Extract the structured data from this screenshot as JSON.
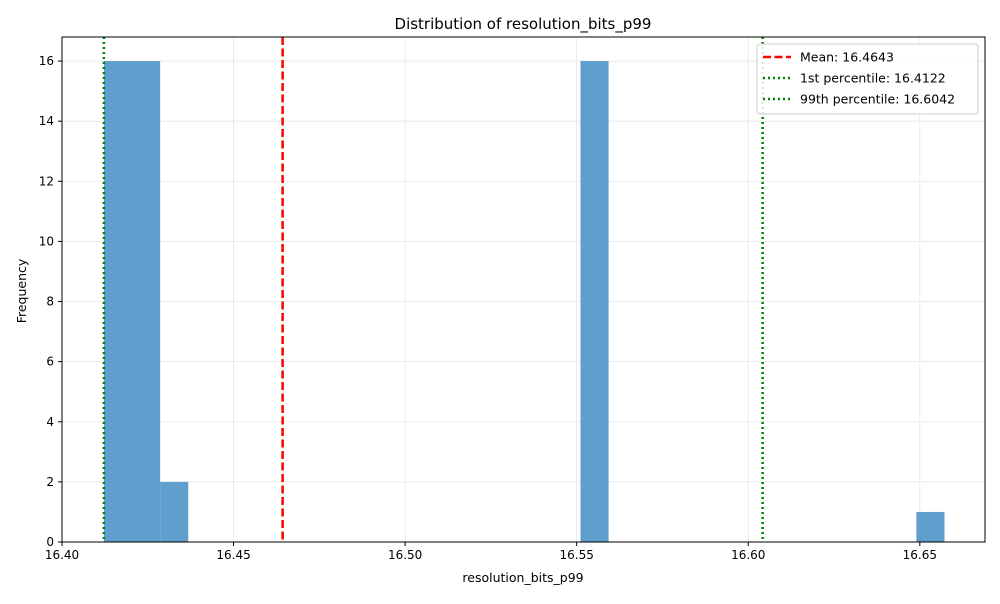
{
  "chart_data": {
    "type": "histogram",
    "title": "Distribution of resolution_bits_p99",
    "xlabel": "resolution_bits_p99",
    "ylabel": "Frequency",
    "xlim": [
      16.4,
      16.669
    ],
    "ylim": [
      0,
      16.8
    ],
    "xticks": [
      16.4,
      16.45,
      16.5,
      16.55,
      16.6,
      16.65
    ],
    "xtick_labels": [
      "16.40",
      "16.45",
      "16.50",
      "16.55",
      "16.60",
      "16.65"
    ],
    "yticks": [
      0,
      2,
      4,
      6,
      8,
      10,
      12,
      14,
      16
    ],
    "ytick_labels": [
      "0",
      "2",
      "4",
      "6",
      "8",
      "10",
      "12",
      "14",
      "16"
    ],
    "grid": true,
    "bar_color": "#5f9ecd",
    "bins": [
      {
        "x0": 16.4122,
        "x1": 16.4204,
        "count": 16
      },
      {
        "x0": 16.4204,
        "x1": 16.4286,
        "count": 16
      },
      {
        "x0": 16.4286,
        "x1": 16.4368,
        "count": 2
      },
      {
        "x0": 16.5511,
        "x1": 16.5593,
        "count": 16
      },
      {
        "x0": 16.649,
        "x1": 16.6572,
        "count": 1
      }
    ],
    "reference_lines": [
      {
        "label": "Mean: 16.4643",
        "value": 16.4643,
        "style": "dashed",
        "color": "#ff0000"
      },
      {
        "label": "1st percentile: 16.4122",
        "value": 16.4122,
        "style": "dotted",
        "color": "#008000"
      },
      {
        "label": "99th percentile: 16.6042",
        "value": 16.6042,
        "style": "dotted",
        "color": "#008000"
      }
    ],
    "legend_position": "top-right"
  }
}
